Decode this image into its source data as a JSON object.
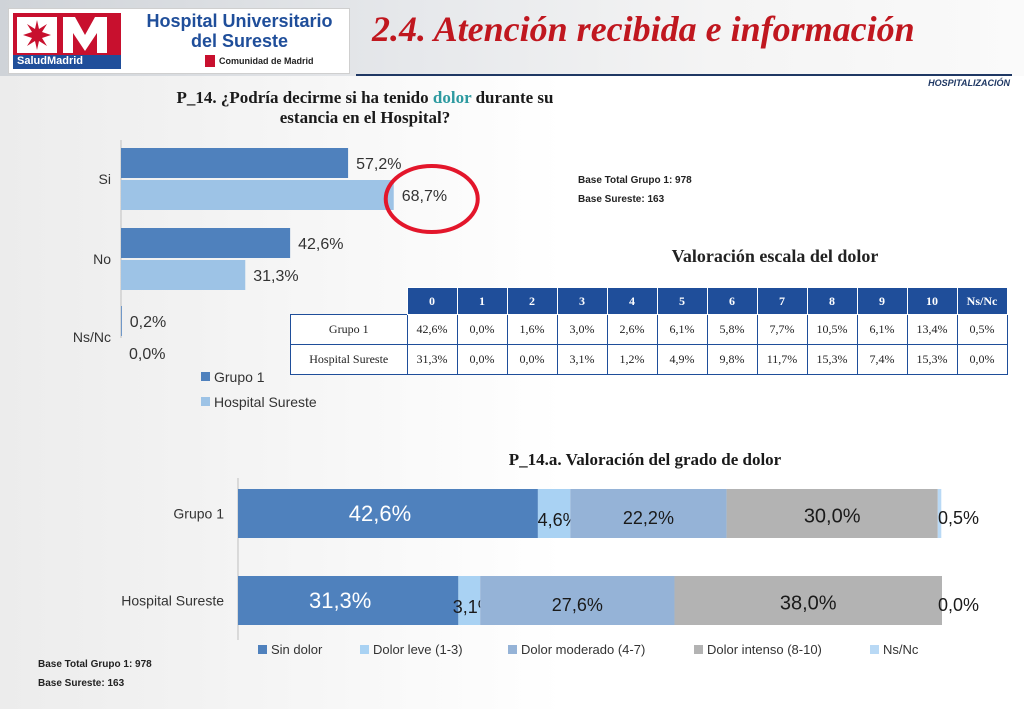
{
  "header": {
    "logo_line1": "Hospital Universitario",
    "logo_line2": "del Sureste",
    "logo_brand": "SaludMadrid",
    "logo_region": "Comunidad de Madrid",
    "title": "2.4. Atención recibida e información",
    "section_tag": "HOSPITALIZACIÓN"
  },
  "colors": {
    "grupo1": "#4f81bd",
    "sureste": "#9dc3e6",
    "leve": "#a9d2f3",
    "moderado": "#95b3d7",
    "intenso": "#b3b3b3",
    "nsnc": "#b9d9f5",
    "title_red": "#c0171f",
    "circle": "#e3162b"
  },
  "question1": {
    "prefix": "P_14. ¿Podría decirme si ha tenido ",
    "highlight": "dolor",
    "suffix": " durante su",
    "line2": "estancia en el Hospital?"
  },
  "bases_top": {
    "line1": "Base Total Grupo 1: 978",
    "line2": "Base Sureste: 163"
  },
  "bases_bottom": {
    "line1": "Base Total Grupo 1: 978",
    "line2": "Base Sureste: 163"
  },
  "table": {
    "title": "Valoración escala  del dolor",
    "headers": [
      "0",
      "1",
      "2",
      "3",
      "4",
      "5",
      "6",
      "7",
      "8",
      "9",
      "10",
      "Ns/Nc"
    ],
    "rows": [
      {
        "label": "Grupo 1",
        "values": [
          "42,6%",
          "0,0%",
          "1,6%",
          "3,0%",
          "2,6%",
          "6,1%",
          "5,8%",
          "7,7%",
          "10,5%",
          "6,1%",
          "13,4%",
          "0,5%"
        ]
      },
      {
        "label": "Hospital Sureste",
        "values": [
          "31,3%",
          "0,0%",
          "0,0%",
          "3,1%",
          "1,2%",
          "4,9%",
          "9,8%",
          "11,7%",
          "15,3%",
          "7,4%",
          "15,3%",
          "0,0%"
        ]
      }
    ]
  },
  "chart_data": [
    {
      "type": "bar",
      "orientation": "horizontal",
      "title": "",
      "categories": [
        "Si",
        "No",
        "Ns/Nc"
      ],
      "series": [
        {
          "name": "Grupo 1",
          "values": [
            57.2,
            42.6,
            0.2
          ],
          "labels": [
            "57,2%",
            "42,6%",
            "0,2%"
          ]
        },
        {
          "name": "Hospital Sureste",
          "values": [
            68.7,
            31.3,
            0.0
          ],
          "labels": [
            "68,7%",
            "31,3%",
            "0,0%"
          ]
        }
      ],
      "xlim": [
        0,
        100
      ],
      "legend": "bottom-left",
      "grid": false
    },
    {
      "type": "bar",
      "orientation": "horizontal",
      "stacked": true,
      "title": "P_14.a. Valoración del grado de dolor",
      "categories": [
        "Grupo 1",
        "Hospital Sureste"
      ],
      "series": [
        {
          "name": "Sin dolor",
          "values": [
            42.6,
            31.3
          ],
          "labels": [
            "42,6%",
            "31,3%"
          ]
        },
        {
          "name": "Dolor leve (1-3)",
          "values": [
            4.6,
            3.1
          ],
          "labels": [
            "4,6%",
            "3,1%"
          ]
        },
        {
          "name": "Dolor moderado (4-7)",
          "values": [
            22.2,
            27.6
          ],
          "labels": [
            "22,2%",
            "27,6%"
          ]
        },
        {
          "name": "Dolor intenso (8-10)",
          "values": [
            30.0,
            38.0
          ],
          "labels": [
            "30,0%",
            "38,0%"
          ]
        },
        {
          "name": "Ns/Nc",
          "values": [
            0.5,
            0.0
          ],
          "labels": [
            "0,5%",
            "0,0%"
          ]
        }
      ],
      "xlim": [
        0,
        100
      ],
      "legend": "bottom",
      "grid": false
    }
  ]
}
